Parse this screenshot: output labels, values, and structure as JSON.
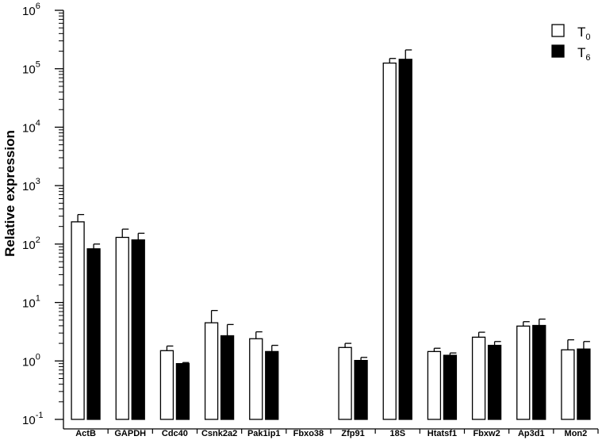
{
  "chart_data": {
    "type": "bar",
    "title": "",
    "xlabel": "",
    "ylabel": "Relative expression",
    "yscale": "log",
    "ylim": [
      0.1,
      1000000
    ],
    "grid": false,
    "legend_position": "top-right",
    "yticks": [
      {
        "value": 0.1,
        "base": "10",
        "exp": "-1"
      },
      {
        "value": 1,
        "base": "10",
        "exp": "0"
      },
      {
        "value": 10,
        "base": "10",
        "exp": "1"
      },
      {
        "value": 100,
        "base": "10",
        "exp": "2"
      },
      {
        "value": 1000,
        "base": "10",
        "exp": "3"
      },
      {
        "value": 10000,
        "base": "10",
        "exp": "4"
      },
      {
        "value": 100000,
        "base": "10",
        "exp": "5"
      },
      {
        "value": 1000000,
        "base": "10",
        "exp": "6"
      }
    ],
    "categories": [
      "ActB",
      "GAPDH",
      "Cdc40",
      "Csnk2a2",
      "Pak1ip1",
      "Fbxo38",
      "Zfp91",
      "18S",
      "Htatsf1",
      "Fbxw2",
      "Ap3d1",
      "Mon2"
    ],
    "series": [
      {
        "name": "T0",
        "label_main": "T",
        "label_sub": "0",
        "fill": "#ffffff",
        "values": [
          240,
          130,
          1.5,
          4.5,
          2.4,
          null,
          1.7,
          125000,
          1.45,
          2.55,
          3.95,
          1.55
        ],
        "errors": [
          80,
          50,
          0.3,
          2.8,
          0.75,
          null,
          0.3,
          25000,
          0.2,
          0.55,
          0.75,
          0.75
        ]
      },
      {
        "name": "T6",
        "label_main": "T",
        "label_sub": "6",
        "fill": "#000000",
        "values": [
          83,
          118,
          0.9,
          2.7,
          1.45,
          null,
          1.02,
          145000,
          1.25,
          1.85,
          4.05,
          1.6
        ],
        "errors": [
          17,
          35,
          0.04,
          1.5,
          0.4,
          null,
          0.13,
          65000,
          0.12,
          0.3,
          1.15,
          0.55
        ]
      }
    ]
  }
}
